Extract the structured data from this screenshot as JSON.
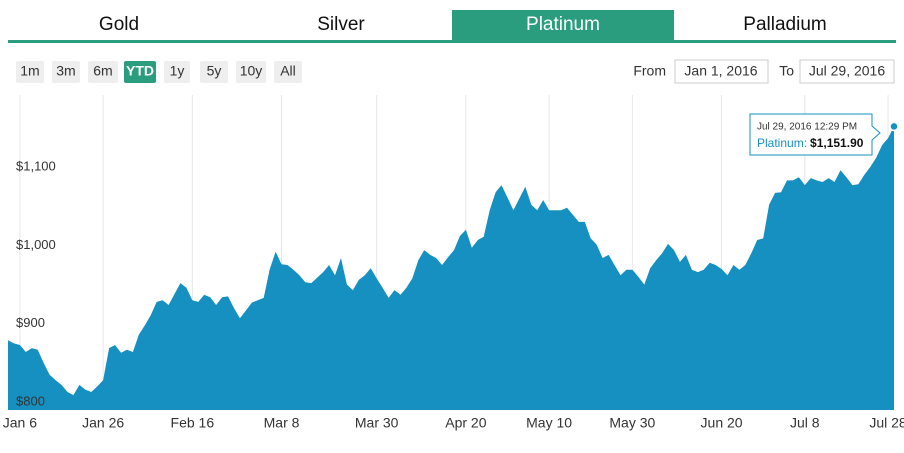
{
  "tabs": [
    "Gold",
    "Silver",
    "Platinum",
    "Palladium"
  ],
  "active_tab": 2,
  "ranges": [
    "1m",
    "3m",
    "6m",
    "YTD",
    "1y",
    "5y",
    "10y",
    "All"
  ],
  "active_range": 3,
  "from_label": "From",
  "from": "Jan 1, 2016",
  "to_label": "To",
  "to": "Jul 29, 2016",
  "chart_data": {
    "type": "area",
    "color": "#1690c0",
    "categories": [
      null,
      null,
      "Jan 6",
      null,
      null,
      null,
      null,
      null,
      null,
      null,
      null,
      null,
      null,
      null,
      null,
      null,
      "Jan 26",
      null,
      null,
      null,
      null,
      null,
      null,
      null,
      null,
      null,
      null,
      null,
      null,
      null,
      null,
      "Feb 16",
      null,
      null,
      null,
      null,
      null,
      null,
      null,
      null,
      null,
      null,
      null,
      null,
      null,
      null,
      "Mar 8",
      null,
      null,
      null,
      null,
      null,
      null,
      null,
      null,
      null,
      null,
      null,
      null,
      null,
      null,
      null,
      "Mar 30",
      null,
      null,
      null,
      null,
      null,
      null,
      null,
      null,
      null,
      null,
      null,
      null,
      null,
      null,
      "Apr 20",
      null,
      null,
      null,
      null,
      null,
      null,
      null,
      null,
      null,
      null,
      null,
      null,
      null,
      "May 10",
      null,
      null,
      null,
      null,
      null,
      null,
      null,
      null,
      null,
      null,
      null,
      null,
      null,
      "May 30",
      null,
      null,
      null,
      null,
      null,
      null,
      null,
      null,
      null,
      null,
      null,
      null,
      null,
      null,
      "Jun 20",
      null,
      null,
      null,
      null,
      null,
      null,
      null,
      null,
      null,
      null,
      null,
      null,
      null,
      "Jul 8",
      null,
      null,
      null,
      null,
      null,
      null,
      null,
      null,
      null,
      null,
      null,
      null,
      null,
      "Jul 28",
      null
    ],
    "values": [
      879,
      875,
      873,
      864,
      869,
      867,
      850,
      835,
      828,
      822,
      813,
      809,
      822,
      816,
      813,
      820,
      828,
      869,
      873,
      863,
      867,
      864,
      886,
      898,
      911,
      928,
      930,
      924,
      938,
      952,
      946,
      930,
      928,
      937,
      934,
      924,
      934,
      935,
      920,
      907,
      917,
      927,
      930,
      933,
      969,
      992,
      976,
      975,
      969,
      962,
      953,
      952,
      959,
      966,
      975,
      962,
      984,
      950,
      943,
      956,
      962,
      971,
      958,
      946,
      933,
      943,
      937,
      946,
      958,
      981,
      994,
      988,
      984,
      975,
      985,
      994,
      1012,
      1020,
      997,
      1007,
      1011,
      1045,
      1068,
      1077,
      1061,
      1045,
      1060,
      1075,
      1052,
      1045,
      1058,
      1045,
      1045,
      1045,
      1048,
      1039,
      1030,
      1030,
      1009,
      1001,
      984,
      988,
      975,
      962,
      969,
      969,
      960,
      950,
      971,
      981,
      990,
      1002,
      994,
      979,
      988,
      969,
      966,
      969,
      978,
      975,
      970,
      962,
      975,
      969,
      975,
      990,
      1007,
      1009,
      1052,
      1067,
      1068,
      1083,
      1083,
      1087,
      1077,
      1086,
      1083,
      1081,
      1086,
      1081,
      1096,
      1087,
      1077,
      1078,
      1090,
      1100,
      1112,
      1128,
      1137,
      1151.9
    ],
    "ylim": [
      790,
      1192
    ],
    "yticks": [
      {
        "value": 800,
        "label": "$800"
      },
      {
        "value": 900,
        "label": "$900"
      },
      {
        "value": 1000,
        "label": "$1,000"
      },
      {
        "value": 1100,
        "label": "$1,100"
      }
    ],
    "xgrid": true,
    "tooltip": {
      "date": "Jul 29, 2016 12:29 PM",
      "series": "Platinum:",
      "value_label": "$1,151.90"
    }
  }
}
